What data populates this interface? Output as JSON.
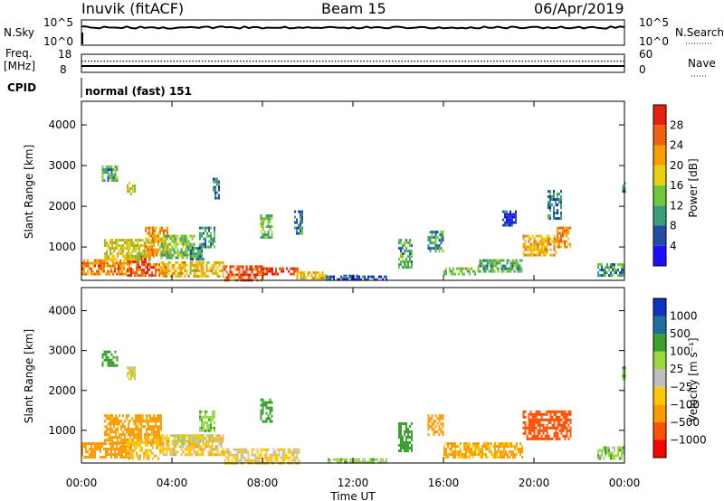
{
  "header": {
    "station": "Inuvik (fitACF)",
    "beam": "Beam 15",
    "date": "06/Apr/2019"
  },
  "noise_panel": {
    "left_label": "N.Sky",
    "left_ticks": [
      "10^5",
      "10^0"
    ],
    "right_label": "N.Search",
    "right_ticks": [
      "10^5",
      "10^0"
    ],
    "level": 0.7
  },
  "freq_panel": {
    "left_label_line1": "Freq.",
    "left_label_line2": "[MHz]",
    "left_ticks": [
      "18",
      "8"
    ],
    "right_label": "Nave",
    "right_ticks": [
      "60",
      "0"
    ],
    "freq_level": 0.35,
    "nave_level": 0.62
  },
  "cpid": {
    "label": "CPID",
    "value": "normal (fast) 151"
  },
  "colors": {
    "power": [
      "#1a10ff",
      "#1f4da8",
      "#3a9e78",
      "#6ec83a",
      "#e8d010",
      "#f5a000",
      "#f06010",
      "#e82010"
    ],
    "velocity": [
      "#ff0000",
      "#ff5000",
      "#ff9a00",
      "#ffc800",
      "#bebebe",
      "#9ad840",
      "#3aa030",
      "#1a70a0",
      "#1030c0"
    ],
    "trace": "#000000"
  },
  "chart_data": [
    {
      "type": "heatmap",
      "name": "power",
      "ylabel": "Slant Range [km]",
      "x_range_hours": [
        0,
        24
      ],
      "ylim": [
        180,
        4580
      ],
      "yticks": [
        1000,
        2000,
        3000,
        4000
      ],
      "colorbar": {
        "label": "Power [dB]",
        "range": [
          0,
          32
        ],
        "ticks": [
          4,
          8,
          12,
          16,
          20,
          24,
          28
        ]
      },
      "regions": [
        {
          "t": [
            0.0,
            2.2
          ],
          "r": [
            300,
            700
          ],
          "v": 24
        },
        {
          "t": [
            2.0,
            3.0
          ],
          "r": [
            300,
            800
          ],
          "v": 27
        },
        {
          "t": [
            3.0,
            3.8
          ],
          "r": [
            300,
            600
          ],
          "v": 24
        },
        {
          "t": [
            3.5,
            6.3
          ],
          "r": [
            300,
            650
          ],
          "v": 20
        },
        {
          "t": [
            6.3,
            8.0
          ],
          "r": [
            200,
            550
          ],
          "v": 27
        },
        {
          "t": [
            8.0,
            9.6
          ],
          "r": [
            300,
            500
          ],
          "v": 29
        },
        {
          "t": [
            9.5,
            10.8
          ],
          "r": [
            250,
            400
          ],
          "v": 20
        },
        {
          "t": [
            1.0,
            3.2
          ],
          "r": [
            700,
            1200
          ],
          "v": 18
        },
        {
          "t": [
            2.8,
            3.8
          ],
          "r": [
            800,
            1500
          ],
          "v": 22
        },
        {
          "t": [
            3.5,
            5.0
          ],
          "r": [
            700,
            1300
          ],
          "v": 14
        },
        {
          "t": [
            4.8,
            5.4
          ],
          "r": [
            700,
            1000
          ],
          "v": 10
        },
        {
          "t": [
            5.2,
            5.9
          ],
          "r": [
            1000,
            1500
          ],
          "v": 11
        },
        {
          "t": [
            7.9,
            8.4
          ],
          "r": [
            1200,
            1800
          ],
          "v": 13
        },
        {
          "t": [
            9.4,
            9.8
          ],
          "r": [
            1300,
            1900
          ],
          "v": 9
        },
        {
          "t": [
            2.0,
            2.4
          ],
          "r": [
            2300,
            2600
          ],
          "v": 17
        },
        {
          "t": [
            0.9,
            1.6
          ],
          "r": [
            2600,
            3000
          ],
          "v": 12
        },
        {
          "t": [
            5.8,
            6.1
          ],
          "r": [
            2200,
            2700
          ],
          "v": 8
        },
        {
          "t": [
            14.0,
            14.6
          ],
          "r": [
            500,
            1200
          ],
          "v": 12
        },
        {
          "t": [
            15.3,
            16.0
          ],
          "r": [
            900,
            1400
          ],
          "v": 10
        },
        {
          "t": [
            16.0,
            17.5
          ],
          "r": [
            300,
            500
          ],
          "v": 14
        },
        {
          "t": [
            17.5,
            19.5
          ],
          "r": [
            400,
            700
          ],
          "v": 12
        },
        {
          "t": [
            19.5,
            21.0
          ],
          "r": [
            800,
            1300
          ],
          "v": 21
        },
        {
          "t": [
            21.0,
            21.6
          ],
          "r": [
            1000,
            1500
          ],
          "v": 23
        },
        {
          "t": [
            22.8,
            24.0
          ],
          "r": [
            300,
            600
          ],
          "v": 10
        },
        {
          "t": [
            18.6,
            19.2
          ],
          "r": [
            1500,
            1900
          ],
          "v": 4
        },
        {
          "t": [
            20.6,
            21.2
          ],
          "r": [
            1700,
            2400
          ],
          "v": 8
        },
        {
          "t": [
            23.9,
            24.0
          ],
          "r": [
            2300,
            2600
          ],
          "v": 10
        },
        {
          "t": [
            11.5,
            12.2
          ],
          "r": [
            200,
            320
          ],
          "v": 4
        },
        {
          "t": [
            10.8,
            13.5
          ],
          "r": [
            200,
            300
          ],
          "v": 6
        }
      ]
    },
    {
      "type": "heatmap",
      "name": "velocity",
      "ylabel": "Slant Range [km]",
      "xlabel": "Time UT",
      "x_range_hours": [
        0,
        24
      ],
      "xticks": [
        "00:00",
        "04:00",
        "08:00",
        "12:00",
        "16:00",
        "20:00",
        "00:00"
      ],
      "ylim": [
        180,
        4580
      ],
      "yticks": [
        1000,
        2000,
        3000,
        4000
      ],
      "colorbar": {
        "label": "Velocity [m s⁻¹]",
        "ticks": [
          "1000",
          "500",
          "100",
          "25",
          "−25",
          "−100",
          "−500",
          "−1000"
        ]
      },
      "regions": [
        {
          "t": [
            0.0,
            2.2
          ],
          "r": [
            300,
            700
          ],
          "v": -300
        },
        {
          "t": [
            1.0,
            3.5
          ],
          "r": [
            700,
            1400
          ],
          "v": -150
        },
        {
          "t": [
            2.0,
            3.5
          ],
          "r": [
            300,
            800
          ],
          "v": -80
        },
        {
          "t": [
            3.5,
            6.3
          ],
          "r": [
            400,
            900
          ],
          "v": -60
        },
        {
          "t": [
            4.0,
            6.0
          ],
          "r": [
            700,
            900
          ],
          "v": 0
        },
        {
          "t": [
            6.3,
            9.6
          ],
          "r": [
            200,
            550
          ],
          "v": -40
        },
        {
          "t": [
            7.9,
            8.4
          ],
          "r": [
            1200,
            1800
          ],
          "v": 200
        },
        {
          "t": [
            5.2,
            5.9
          ],
          "r": [
            1000,
            1500
          ],
          "v": 80
        },
        {
          "t": [
            2.0,
            2.4
          ],
          "r": [
            2300,
            2600
          ],
          "v": 0
        },
        {
          "t": [
            0.9,
            1.6
          ],
          "r": [
            2600,
            3000
          ],
          "v": 150
        },
        {
          "t": [
            14.0,
            14.6
          ],
          "r": [
            500,
            1200
          ],
          "v": 400
        },
        {
          "t": [
            15.3,
            16.0
          ],
          "r": [
            900,
            1400
          ],
          "v": -200
        },
        {
          "t": [
            16.0,
            19.5
          ],
          "r": [
            300,
            700
          ],
          "v": -120
        },
        {
          "t": [
            19.5,
            21.6
          ],
          "r": [
            800,
            1500
          ],
          "v": -700
        },
        {
          "t": [
            22.8,
            24.0
          ],
          "r": [
            300,
            600
          ],
          "v": 60
        },
        {
          "t": [
            23.9,
            24.0
          ],
          "r": [
            2300,
            2600
          ],
          "v": 80
        },
        {
          "t": [
            10.8,
            13.5
          ],
          "r": [
            200,
            300
          ],
          "v": 60
        }
      ]
    }
  ]
}
